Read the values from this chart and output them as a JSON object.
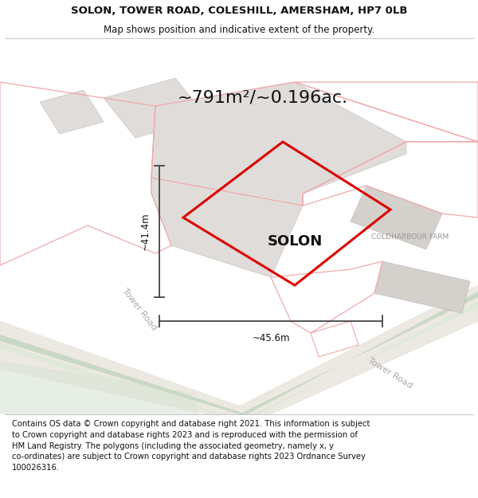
{
  "title_line1": "SOLON, TOWER ROAD, COLESHILL, AMERSHAM, HP7 0LB",
  "title_line2": "Map shows position and indicative extent of the property.",
  "area_text": "~791m²/~0.196ac.",
  "property_label": "SOLON",
  "dim_height": "~41.4m",
  "dim_width": "~45.6m",
  "coldharbour_label": "COLDHARBOUR FARM",
  "tower_road_label1": "Tower Road",
  "tower_road_label2": "Tower Road",
  "footer_lines": [
    "Contains OS data © Crown copyright and database right 2021. This information is subject",
    "to Crown copyright and database rights 2023 and is reproduced with the permission of",
    "HM Land Registry. The polygons (including the associated geometry, namely x, y",
    "co-ordinates) are subject to Crown copyright and database rights 2023 Ordnance Survey",
    "100026316."
  ],
  "plot_outline_color": "#dd0000",
  "pink_line_color": "#f0aaaa",
  "grey_fill_color": "#e0dcda",
  "grey_fill_color2": "#d4d0cc",
  "road_bg_color": "#f0ece8",
  "green_stripe1": "#c8d8c4",
  "green_stripe2": "#dce8d8",
  "map_bg": "#f8f5f2",
  "white_bg": "#ffffff",
  "dim_line_color": "#444444",
  "text_dark": "#111111",
  "text_grey": "#999999",
  "text_mid_grey": "#aaaaaa",
  "title_fontsize": 9.5,
  "subtitle_fontsize": 8.5,
  "area_fontsize": 16,
  "solon_fontsize": 13,
  "dim_fontsize": 8.5,
  "coldharbour_fontsize": 6.5,
  "road_fontsize": 8,
  "footer_fontsize": 7.2
}
